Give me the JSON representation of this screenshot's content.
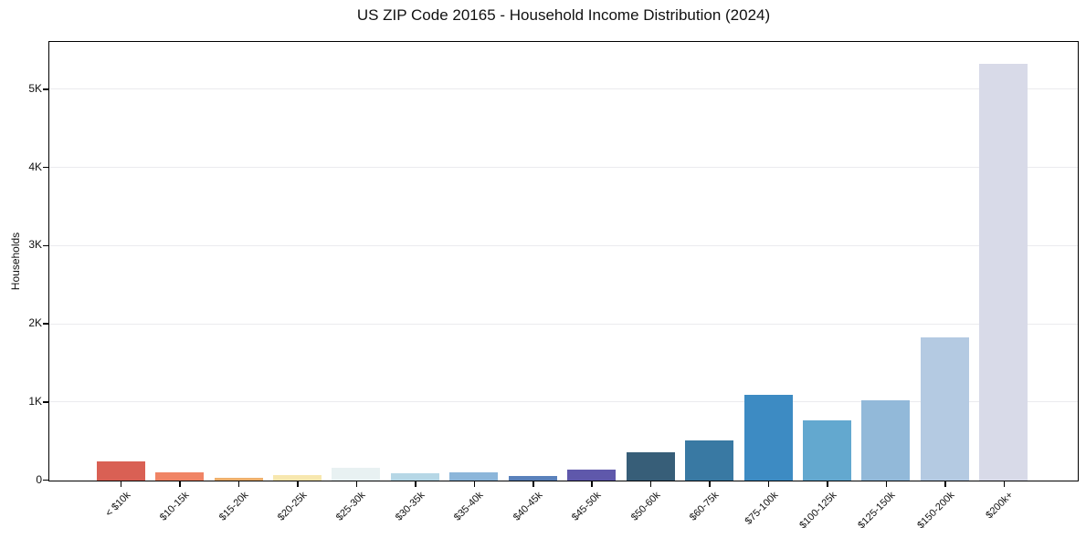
{
  "chart_data": {
    "type": "bar",
    "title": "US ZIP Code 20165 - Household Income Distribution (2024)",
    "xlabel": "",
    "ylabel": "Households",
    "categories": [
      "< $10k",
      "$10-15k",
      "$15-20k",
      "$20-25k",
      "$25-30k",
      "$30-35k",
      "$35-40k",
      "$40-45k",
      "$45-50k",
      "$50-60k",
      "$60-75k",
      "$75-100k",
      "$100-125k",
      "$125-150k",
      "$150-200k",
      "$200k+"
    ],
    "values": [
      250,
      110,
      40,
      70,
      160,
      90,
      110,
      60,
      140,
      360,
      510,
      1100,
      770,
      1030,
      1830,
      5330
    ],
    "bar_colors": [
      "#d96054",
      "#f08465",
      "#eeb06d",
      "#f7e7af",
      "#e8f1f2",
      "#b6d7e6",
      "#8cb6da",
      "#5a81bb",
      "#5f58ab",
      "#375e78",
      "#3979a3",
      "#3d8bc3",
      "#63a8cf",
      "#92b9d9",
      "#b4cae2",
      "#d8dae8"
    ],
    "ylim": [
      0,
      5600
    ],
    "yticks": [
      {
        "v": 0,
        "label": "0"
      },
      {
        "v": 1000,
        "label": "1K"
      },
      {
        "v": 2000,
        "label": "2K"
      },
      {
        "v": 3000,
        "label": "3K"
      },
      {
        "v": 4000,
        "label": "4K"
      },
      {
        "v": 5000,
        "label": "5K"
      }
    ],
    "grid": "horizontal",
    "gridline_color": "#ebebee",
    "spine_color": "#000000",
    "background": "#ffffff",
    "legend": "none",
    "x_label_rotation_deg": 45
  }
}
